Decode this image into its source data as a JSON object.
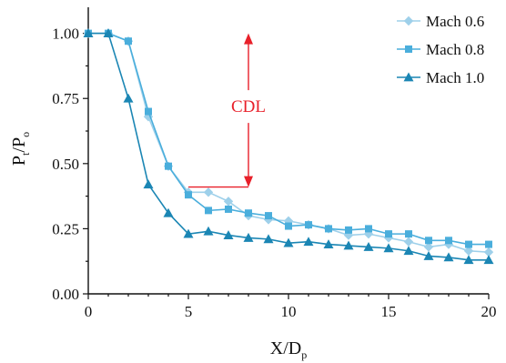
{
  "chart_data": {
    "type": "line",
    "xlabel": {
      "main": "X/D",
      "sub": "p"
    },
    "ylabel": {
      "main": "P",
      "sub1": "t",
      "mid": "/P",
      "sub2": "o"
    },
    "xlim": [
      0,
      20
    ],
    "ylim": [
      0,
      1.1
    ],
    "x_ticks": [
      0,
      5,
      10,
      15,
      20
    ],
    "x_tick_labels": [
      "0",
      "5",
      "10",
      "15",
      "20"
    ],
    "y_ticks": [
      0,
      0.25,
      0.5,
      0.75,
      1.0
    ],
    "y_tick_labels": [
      "0.00",
      "0.25",
      "0.50",
      "0.75",
      "1.00"
    ],
    "grid": false,
    "legend_position": "top-right",
    "x": [
      0,
      1,
      2,
      3,
      4,
      5,
      6,
      7,
      8,
      9,
      10,
      11,
      12,
      13,
      14,
      15,
      16,
      17,
      18,
      19,
      20
    ],
    "series": [
      {
        "name": "Mach 0.6",
        "marker": "diamond",
        "color": "#9ed0ea",
        "values": [
          1.0,
          1.0,
          0.97,
          0.68,
          0.49,
          0.39,
          0.39,
          0.355,
          0.3,
          0.285,
          0.28,
          0.265,
          0.25,
          0.225,
          0.23,
          0.215,
          0.2,
          0.18,
          0.19,
          0.165,
          0.16
        ]
      },
      {
        "name": "Mach 0.8",
        "marker": "square",
        "color": "#4aaedc",
        "values": [
          1.0,
          1.0,
          0.97,
          0.7,
          0.49,
          0.38,
          0.32,
          0.325,
          0.31,
          0.3,
          0.26,
          0.265,
          0.25,
          0.245,
          0.25,
          0.23,
          0.23,
          0.205,
          0.205,
          0.19,
          0.19
        ]
      },
      {
        "name": "Mach 1.0",
        "marker": "triangle",
        "color": "#1b86b4",
        "values": [
          1.0,
          1.0,
          0.75,
          0.42,
          0.31,
          0.23,
          0.24,
          0.225,
          0.215,
          0.21,
          0.195,
          0.2,
          0.19,
          0.185,
          0.18,
          0.175,
          0.165,
          0.145,
          0.14,
          0.13,
          0.13
        ]
      }
    ],
    "annotation": {
      "label": "CDL",
      "color": "#e8202a",
      "arrow_x": 8,
      "arrow_y_top": 1.0,
      "arrow_y_bottom": 0.41,
      "baseline_x": [
        5,
        8
      ],
      "baseline_y": 0.41
    },
    "axis_color": "#111111"
  }
}
